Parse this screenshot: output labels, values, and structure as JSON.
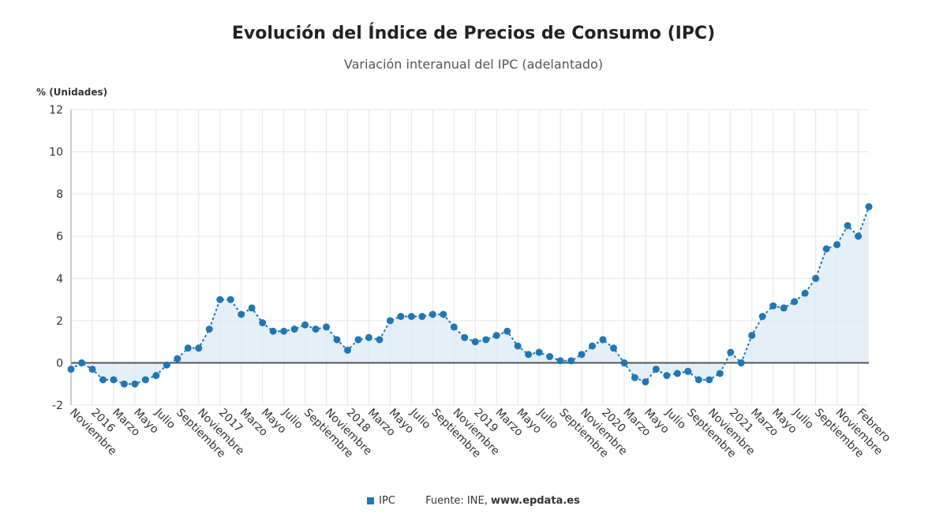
{
  "header": {
    "title": "Evolución del Índice de Precios de Consumo (IPC)",
    "subtitle": "Variación interanual del IPC (adelantado)"
  },
  "legend": {
    "series_label": "IPC",
    "source_prefix": "Fuente: INE,",
    "source_site": "www.epdata.es"
  },
  "colors": {
    "series": "#1f77b4",
    "area": "#dceaf6",
    "zero_line": "#555555",
    "grid": "#e6e6e6"
  },
  "chart_data": {
    "type": "line",
    "ylabel": "% (Unidades)",
    "ylim": [
      -2,
      12
    ],
    "yticks": [
      -2,
      0,
      2,
      4,
      6,
      8,
      10,
      12
    ],
    "grid": true,
    "area_fill": true,
    "x_tick_labels": [
      "Noviembre",
      "2016",
      "Marzo",
      "Mayo",
      "Julio",
      "Septiembre",
      "Noviembre",
      "2017",
      "Marzo",
      "Mayo",
      "Julio",
      "Septiembre",
      "Noviembre",
      "2018",
      "Marzo",
      "Mayo",
      "Julio",
      "Septiembre",
      "Noviembre",
      "2019",
      "Marzo",
      "Mayo",
      "Julio",
      "Septiembre",
      "Noviembre",
      "2020",
      "Marzo",
      "Mayo",
      "Julio",
      "Septiembre",
      "Noviembre",
      "2021",
      "Marzo",
      "Mayo",
      "Julio",
      "Septiembre",
      "Noviembre",
      "Febrero"
    ],
    "series": [
      {
        "name": "IPC",
        "values": [
          -0.3,
          0.0,
          -0.3,
          -0.8,
          -0.8,
          -1.0,
          -1.0,
          -0.8,
          -0.6,
          -0.1,
          0.2,
          0.7,
          0.7,
          1.6,
          3.0,
          3.0,
          2.3,
          2.6,
          1.9,
          1.5,
          1.5,
          1.6,
          1.8,
          1.6,
          1.7,
          1.1,
          0.6,
          1.1,
          1.2,
          1.1,
          2.0,
          2.2,
          2.2,
          2.2,
          2.3,
          2.3,
          1.7,
          1.2,
          1.0,
          1.1,
          1.3,
          1.5,
          0.8,
          0.4,
          0.5,
          0.3,
          0.1,
          0.1,
          0.4,
          0.8,
          1.1,
          0.7,
          0.0,
          -0.7,
          -0.9,
          -0.3,
          -0.6,
          -0.5,
          -0.4,
          -0.8,
          -0.8,
          -0.5,
          0.5,
          0.0,
          1.3,
          2.2,
          2.7,
          2.6,
          2.9,
          3.3,
          4.0,
          5.4,
          5.6,
          6.5,
          6.0,
          7.4
        ]
      }
    ]
  }
}
